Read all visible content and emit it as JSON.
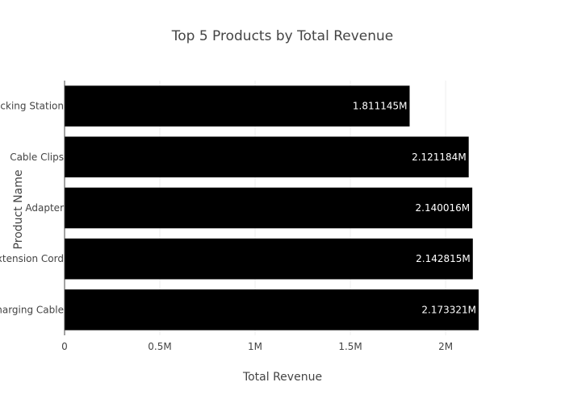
{
  "chart_data": {
    "type": "bar",
    "orientation": "horizontal",
    "title": "Top 5 Products by Total Revenue",
    "xlabel": "Total Revenue",
    "ylabel": "Product Name",
    "categories": [
      "Charging Cable",
      "Extension Cord",
      "Adapter",
      "Cable Clips",
      "Docking Station"
    ],
    "values": [
      2173321,
      2142815,
      2140016,
      2121184,
      1811145
    ],
    "data_labels": [
      "2.173321M",
      "2.142815M",
      "2.140016M",
      "2.121184M",
      "1.811145M"
    ],
    "xlim": [
      0,
      2173321
    ],
    "x_ticks": [
      0,
      500000,
      1000000,
      1500000,
      2000000
    ],
    "x_tick_labels": [
      "0",
      "0.5M",
      "1M",
      "1.5M",
      "2M"
    ],
    "grid": true,
    "bar_color": "#000000",
    "label_color": "#ffffff"
  }
}
